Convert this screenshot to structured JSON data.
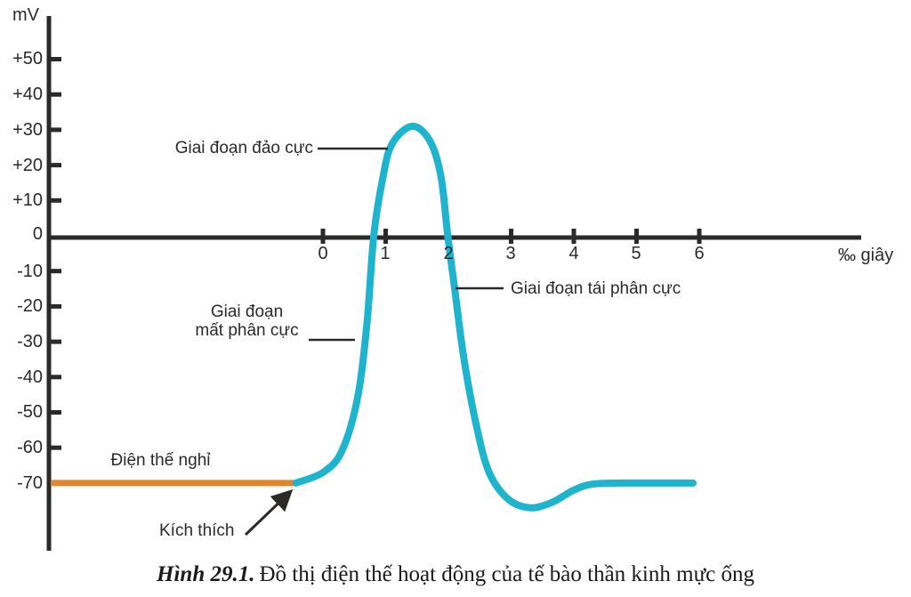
{
  "figure": {
    "caption_prefix": "Hình 29.1.",
    "caption_text": "Đồ thị điện thế hoạt động của tế bào thần kinh mực ống"
  },
  "colors": {
    "curve": "#1fb4ce",
    "resting_line": "#e0862b",
    "axis": "#2b2a29",
    "text": "#2b2a29"
  },
  "chart_data": {
    "type": "line",
    "title": "Đồ thị điện thế hoạt động của tế bào thần kinh mực ống",
    "xlabel": "‰ giây",
    "ylabel": "mV",
    "xlim": [
      0,
      6
    ],
    "ylim": [
      -77,
      50
    ],
    "grid": false,
    "x_ticks": [
      {
        "t": 0,
        "label": "0"
      },
      {
        "t": 1,
        "label": "1"
      },
      {
        "t": 2,
        "label": "2"
      },
      {
        "t": 3,
        "label": "3"
      },
      {
        "t": 4,
        "label": "4"
      },
      {
        "t": 5,
        "label": "5"
      },
      {
        "t": 6,
        "label": "6"
      }
    ],
    "y_ticks": [
      {
        "v": 50,
        "label": "+50"
      },
      {
        "v": 40,
        "label": "+40"
      },
      {
        "v": 30,
        "label": "+30"
      },
      {
        "v": 20,
        "label": "+20"
      },
      {
        "v": 10,
        "label": "+10"
      },
      {
        "v": 0,
        "label": "0"
      },
      {
        "v": -10,
        "label": "-10"
      },
      {
        "v": -20,
        "label": "-20"
      },
      {
        "v": -30,
        "label": "-30"
      },
      {
        "v": -40,
        "label": "-40"
      },
      {
        "v": -50,
        "label": "-50"
      },
      {
        "v": -60,
        "label": "-60"
      },
      {
        "v": -70,
        "label": "-70"
      }
    ],
    "series": [
      {
        "name": "Điện thế hoạt động",
        "color": "#1fb4ce",
        "points": [
          [
            -0.43,
            -70
          ],
          [
            0.0,
            -67
          ],
          [
            0.3,
            -61
          ],
          [
            0.55,
            -46
          ],
          [
            0.7,
            -25
          ],
          [
            0.81,
            0
          ],
          [
            0.95,
            16
          ],
          [
            1.1,
            26
          ],
          [
            1.42,
            31
          ],
          [
            1.7,
            27
          ],
          [
            1.88,
            17
          ],
          [
            1.99,
            0
          ],
          [
            2.1,
            -15
          ],
          [
            2.25,
            -35
          ],
          [
            2.45,
            -54
          ],
          [
            2.65,
            -67
          ],
          [
            2.95,
            -74.5
          ],
          [
            3.3,
            -77
          ],
          [
            3.65,
            -75.5
          ],
          [
            4.0,
            -72
          ],
          [
            4.3,
            -70.3
          ],
          [
            4.8,
            -70
          ],
          [
            5.9,
            -70
          ]
        ]
      }
    ],
    "resting_potential": {
      "label": "Điện thế nghỉ",
      "value_mV": -70,
      "color": "#e0862b"
    },
    "annotations": [
      {
        "id": "dao-cuc",
        "label": "Giai đoạn đảo cực",
        "points_to_mV": 25
      },
      {
        "id": "tai-phan-cuc",
        "label": "Giai đoạn tái phân cực",
        "points_to_mV": -15
      },
      {
        "id": "mat-phan-cuc",
        "label_line1": "Giai đoạn",
        "label_line2": "mất phân cực",
        "points_to_mV": -29
      },
      {
        "id": "kich-thich",
        "label": "Kích thích"
      }
    ]
  }
}
